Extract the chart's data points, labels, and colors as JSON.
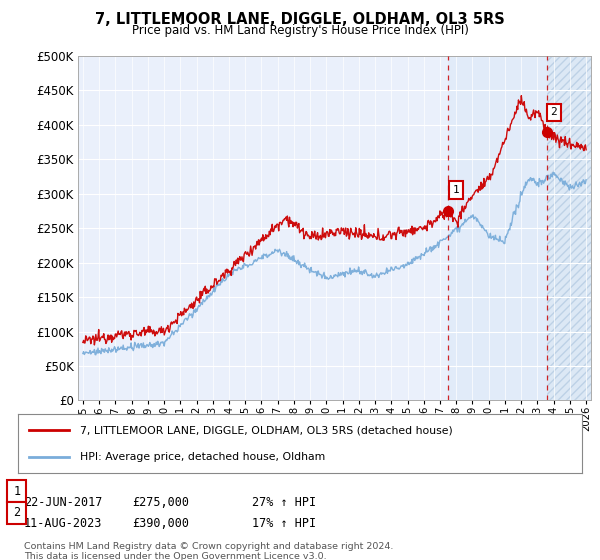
{
  "title": "7, LITTLEMOOR LANE, DIGGLE, OLDHAM, OL3 5RS",
  "subtitle": "Price paid vs. HM Land Registry's House Price Index (HPI)",
  "ylabel_ticks": [
    "£0",
    "£50K",
    "£100K",
    "£150K",
    "£200K",
    "£250K",
    "£300K",
    "£350K",
    "£400K",
    "£450K",
    "£500K"
  ],
  "ytick_values": [
    0,
    50000,
    100000,
    150000,
    200000,
    250000,
    300000,
    350000,
    400000,
    450000,
    500000
  ],
  "x_start_year": 1995,
  "x_end_year": 2026,
  "sale1_date": 2017.47,
  "sale1_price": 275000,
  "sale1_label": "1",
  "sale2_date": 2023.62,
  "sale2_price": 390000,
  "sale2_label": "2",
  "red_line_color": "#cc0000",
  "blue_line_color": "#7aadda",
  "dashed_vline_color": "#cc0000",
  "background_color": "#ffffff",
  "plot_bg_color": "#eaf0fb",
  "hatch_bg_color": "#dce8f5",
  "legend_line1": "7, LITTLEMOOR LANE, DIGGLE, OLDHAM, OL3 5RS (detached house)",
  "legend_line2": "HPI: Average price, detached house, Oldham",
  "note1_label": "1",
  "note1_date": "22-JUN-2017",
  "note1_price": "£275,000",
  "note1_hpi": "27% ↑ HPI",
  "note2_label": "2",
  "note2_date": "11-AUG-2023",
  "note2_price": "£390,000",
  "note2_hpi": "17% ↑ HPI",
  "footer": "Contains HM Land Registry data © Crown copyright and database right 2024.\nThis data is licensed under the Open Government Licence v3.0."
}
